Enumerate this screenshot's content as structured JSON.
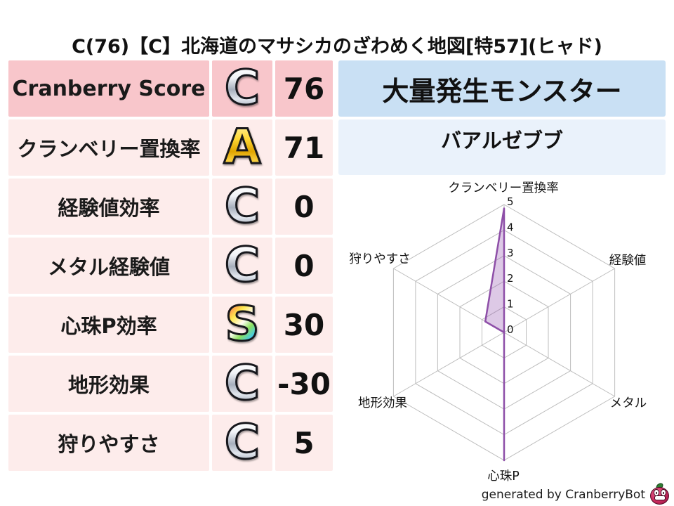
{
  "title": "C(76)【C】北海道のマサシカのざわめく地図[特57](ヒャド)",
  "stats_table": {
    "rows": [
      {
        "label": "Cranberry Score",
        "grade": "C",
        "grade_style": "silver",
        "value": "76"
      },
      {
        "label": "クランベリー置換率",
        "grade": "A",
        "grade_style": "gold",
        "value": "71"
      },
      {
        "label": "経験値効率",
        "grade": "C",
        "grade_style": "silver",
        "value": "0"
      },
      {
        "label": "メタル経験値",
        "grade": "C",
        "grade_style": "silver",
        "value": "0"
      },
      {
        "label": "心珠P効率",
        "grade": "S",
        "grade_style": "rainbow",
        "value": "30"
      },
      {
        "label": "地形効果",
        "grade": "C",
        "grade_style": "silver",
        "value": "-30"
      },
      {
        "label": "狩りやすさ",
        "grade": "C",
        "grade_style": "silver",
        "value": "5"
      }
    ]
  },
  "monster_panel": {
    "header": "大量発生モンスター",
    "name": "バアルゼブブ"
  },
  "chart_data": {
    "type": "radar",
    "categories": [
      "クランベリー置換率",
      "経験値",
      "メタル",
      "心珠P",
      "地形効果",
      "狩りやすさ"
    ],
    "values": [
      4.85,
      0,
      0,
      5,
      0,
      0.85
    ],
    "ticks": [
      0,
      1,
      2,
      3,
      4,
      5
    ],
    "axis_range": [
      0,
      5
    ],
    "grid": "hexagon-spider",
    "fill_color": "rgba(148,87,176,0.32)",
    "stroke_color": "#8e4fa8",
    "grid_color": "#bdbdbd",
    "tick_color": "#111111",
    "label_color": "#161616"
  },
  "footer": {
    "credit": "generated by CranberryBot",
    "logo_icon": "cranberry-face-icon"
  },
  "colors": {
    "row_highlight_bg": "#f8c6cb",
    "row_bg": "#fdeceb",
    "monster_header_bg": "#c9e0f4",
    "monster_name_bg": "#eaf2fb"
  }
}
